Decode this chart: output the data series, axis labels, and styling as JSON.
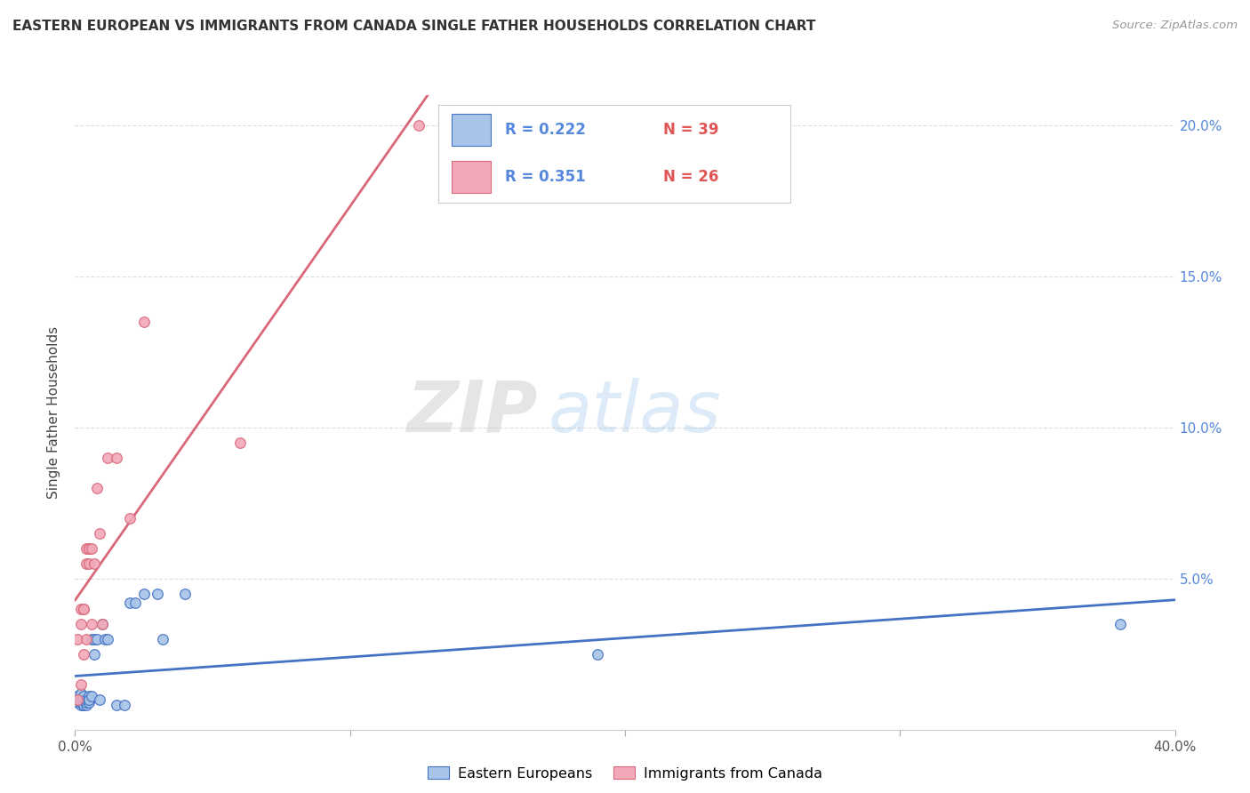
{
  "title": "EASTERN EUROPEAN VS IMMIGRANTS FROM CANADA SINGLE FATHER HOUSEHOLDS CORRELATION CHART",
  "source": "Source: ZipAtlas.com",
  "ylabel": "Single Father Households",
  "xlim": [
    0,
    0.4
  ],
  "ylim": [
    0,
    0.21
  ],
  "yticks": [
    0.0,
    0.05,
    0.1,
    0.15,
    0.2
  ],
  "yticklabels_right": [
    "",
    "5.0%",
    "10.0%",
    "15.0%",
    "20.0%"
  ],
  "blue_color": "#a8c4e8",
  "pink_color": "#f2a8b8",
  "blue_line_color": "#4472c4",
  "pink_line_color": "#d9687a",
  "legend_R1": "R = 0.222",
  "legend_N1": "N = 39",
  "legend_R2": "R = 0.351",
  "legend_N2": "N = 26",
  "legend_label1": "Eastern Europeans",
  "legend_label2": "Immigrants from Canada",
  "watermark_zip": "ZIP",
  "watermark_atlas": "atlas",
  "blue_x": [
    0.001,
    0.001,
    0.001,
    0.002,
    0.002,
    0.002,
    0.002,
    0.003,
    0.003,
    0.003,
    0.003,
    0.003,
    0.004,
    0.004,
    0.004,
    0.004,
    0.005,
    0.005,
    0.005,
    0.005,
    0.006,
    0.006,
    0.007,
    0.007,
    0.008,
    0.009,
    0.01,
    0.011,
    0.012,
    0.015,
    0.018,
    0.02,
    0.022,
    0.025,
    0.03,
    0.032,
    0.04,
    0.19,
    0.38
  ],
  "blue_y": [
    0.01,
    0.009,
    0.011,
    0.008,
    0.01,
    0.009,
    0.012,
    0.008,
    0.01,
    0.009,
    0.011,
    0.008,
    0.008,
    0.01,
    0.009,
    0.01,
    0.01,
    0.009,
    0.011,
    0.01,
    0.011,
    0.03,
    0.025,
    0.03,
    0.03,
    0.01,
    0.035,
    0.03,
    0.03,
    0.008,
    0.008,
    0.042,
    0.042,
    0.045,
    0.045,
    0.03,
    0.045,
    0.025,
    0.035
  ],
  "pink_x": [
    0.001,
    0.001,
    0.002,
    0.002,
    0.002,
    0.003,
    0.003,
    0.003,
    0.004,
    0.004,
    0.004,
    0.005,
    0.005,
    0.005,
    0.006,
    0.006,
    0.007,
    0.008,
    0.009,
    0.01,
    0.012,
    0.015,
    0.02,
    0.025,
    0.06,
    0.125
  ],
  "pink_y": [
    0.01,
    0.03,
    0.015,
    0.035,
    0.04,
    0.025,
    0.04,
    0.04,
    0.03,
    0.055,
    0.06,
    0.055,
    0.06,
    0.06,
    0.035,
    0.06,
    0.055,
    0.08,
    0.065,
    0.035,
    0.09,
    0.09,
    0.07,
    0.135,
    0.095,
    0.2
  ]
}
